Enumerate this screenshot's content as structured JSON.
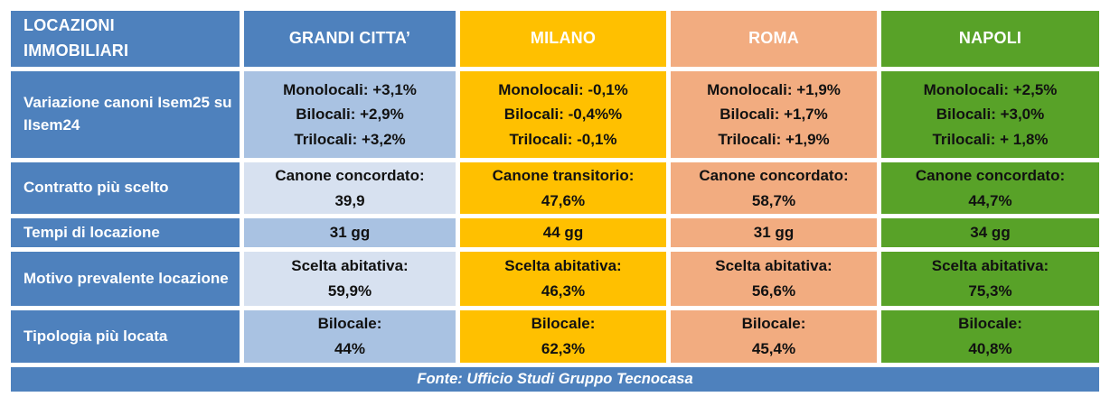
{
  "colors": {
    "blue": "#4E81BD",
    "light_blue": "#A9C2E2",
    "lighter_blue": "#D7E1F0",
    "yellow": "#FFC000",
    "salmon": "#F2AC80",
    "green": "#58A228",
    "text_dark": "#111111",
    "text_light": "#FFFFFF"
  },
  "chart_data": {
    "type": "table",
    "corner_label": "LOCAZIONI\nIMMOBILIARI",
    "columns": [
      "GRANDI CITTA’",
      "MILANO",
      "ROMA",
      "NAPOLI"
    ],
    "row_labels": [
      "Variazione canoni Isem25 su IIsem24",
      "Contratto più scelto",
      "Tempi di locazione",
      "Motivo prevalente locazione",
      "Tipologia più locata"
    ],
    "cells": [
      [
        "Monolocali: +3,1%\nBilocali: +2,9%\nTrilocali: +3,2%",
        "Monolocali: -0,1%\nBilocali: -0,4%%\nTrilocali: -0,1%",
        "Monolocali: +1,9%\nBilocali: +1,7%\nTrilocali: +1,9%",
        "Monolocali: +2,5%\nBilocali: +3,0%\nTrilocali: + 1,8%"
      ],
      [
        "Canone concordato:\n39,9",
        "Canone transitorio:\n47,6%",
        "Canone concordato:\n58,7%",
        "Canone concordato:\n44,7%"
      ],
      [
        "31 gg",
        "44 gg",
        "31 gg",
        "34 gg"
      ],
      [
        "Scelta abitativa:\n59,9%",
        "Scelta abitativa:\n46,3%",
        "Scelta abitativa:\n56,6%",
        "Scelta abitativa:\n75,3%"
      ],
      [
        "Bilocale:\n44%",
        "Bilocale:\n62,3%",
        "Bilocale:\n45,4%",
        "Bilocale:\n40,8%"
      ]
    ],
    "source_note": "Fonte: Ufficio Studi Gruppo Tecnocasa"
  }
}
